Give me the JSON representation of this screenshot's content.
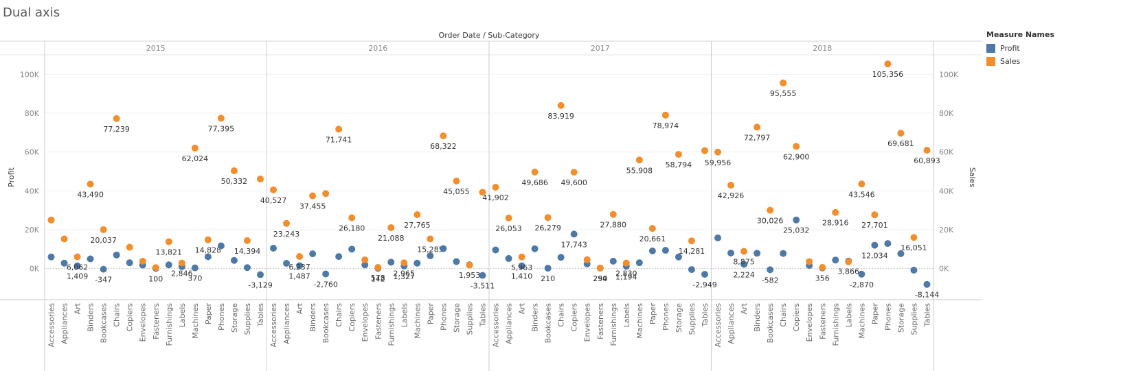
{
  "sheet_title": "Dual axis",
  "legend": {
    "title": "Measure Names",
    "items": [
      {
        "label": "Profit",
        "color": "#4e79a7"
      },
      {
        "label": "Sales",
        "color": "#f28e2b"
      }
    ]
  },
  "chart_data": {
    "type": "scatter",
    "header_label": "Order Date / Sub-Category",
    "ylabel_left": "Profit",
    "ylabel_right": "Sales",
    "ylim": [
      -16000,
      110000
    ],
    "yticks": [
      {
        "value": 0,
        "label": "0K"
      },
      {
        "value": 20000,
        "label": "20K"
      },
      {
        "value": 40000,
        "label": "40K"
      },
      {
        "value": 60000,
        "label": "60K"
      },
      {
        "value": 80000,
        "label": "80K"
      },
      {
        "value": 100000,
        "label": "100K"
      }
    ],
    "categories": [
      "Accessories",
      "Appliances",
      "Art",
      "Binders",
      "Bookcases",
      "Chairs",
      "Copiers",
      "Envelopes",
      "Fasteners",
      "Furnishings",
      "Labels",
      "Machines",
      "Paper",
      "Phones",
      "Storage",
      "Supplies",
      "Tables"
    ],
    "panels": [
      {
        "year": "2015",
        "profit": [
          6000,
          2800,
          1409,
          5000,
          -347,
          7000,
          3000,
          1800,
          100,
          1900,
          1000,
          370,
          6100,
          11700,
          4200,
          500,
          -3129
        ],
        "sales": [
          25000,
          15300,
          6062,
          43490,
          20037,
          77239,
          11000,
          3800,
          500,
          13821,
          2846,
          62024,
          14828,
          77395,
          50332,
          14394,
          46100
        ],
        "profit_labels": [
          "",
          "",
          "1,409",
          "",
          "-347",
          "",
          "",
          "",
          "100",
          "",
          "",
          "370",
          "",
          "",
          "",
          "",
          "-3,129"
        ],
        "sales_labels": [
          "",
          "",
          "6,062",
          "43,490",
          "20,037",
          "77,239",
          "",
          "",
          "",
          "13,821",
          "2,846",
          "62,024",
          "14,828",
          "77,395",
          "50,332",
          "14,394",
          ""
        ]
      },
      {
        "year": "2016",
        "profit": [
          10500,
          2700,
          1487,
          7600,
          -2760,
          6200,
          10000,
          1900,
          142,
          3300,
          1327,
          2800,
          6600,
          10300,
          3600,
          1953,
          -3511
        ],
        "sales": [
          40527,
          23243,
          6237,
          37455,
          38600,
          71741,
          26180,
          4500,
          578,
          21088,
          2965,
          27765,
          15285,
          68322,
          45055,
          1800,
          39300
        ],
        "profit_labels": [
          "",
          "",
          "1,487",
          "",
          "-2,760",
          "",
          "",
          "",
          "142",
          "",
          "1,327",
          "",
          "",
          "",
          "",
          "1,953",
          "-3,511"
        ],
        "sales_labels": [
          "40,527",
          "23,243",
          "6,237",
          "37,455",
          "",
          "71,741",
          "26,180",
          "",
          "578",
          "21,088",
          "2,965",
          "27,765",
          "15,285",
          "68,322",
          "45,055",
          "",
          ""
        ]
      },
      {
        "year": "2017",
        "profit": [
          9600,
          5200,
          1410,
          10200,
          210,
          5800,
          17743,
          2400,
          254,
          3800,
          1194,
          3000,
          9100,
          9400,
          6000,
          -500,
          -2949
        ],
        "sales": [
          41902,
          26053,
          5963,
          49686,
          26279,
          83919,
          49600,
          4600,
          290,
          27880,
          2830,
          55908,
          20661,
          78974,
          58794,
          14281,
          60700
        ],
        "profit_labels": [
          "",
          "",
          "1,410",
          "",
          "210",
          "",
          "17,743",
          "",
          "254",
          "",
          "1,194",
          "",
          "",
          "",
          "",
          "",
          "-2,949"
        ],
        "sales_labels": [
          "41,902",
          "26,053",
          "5,963",
          "49,686",
          "26,279",
          "83,919",
          "49,600",
          "",
          "290",
          "27,880",
          "2,830",
          "55,908",
          "20,661",
          "78,974",
          "58,794",
          "14,281",
          ""
        ]
      },
      {
        "year": "2018",
        "profit": [
          15800,
          8000,
          2224,
          7900,
          -582,
          7800,
          25032,
          1600,
          356,
          4400,
          3866,
          -2870,
          12034,
          12900,
          7700,
          -800,
          -8144
        ],
        "sales": [
          59956,
          42926,
          8875,
          72797,
          30026,
          95555,
          62900,
          3600,
          600,
          28916,
          3500,
          43546,
          27701,
          105356,
          69681,
          16051,
          60893
        ],
        "profit_labels": [
          "",
          "",
          "2,224",
          "",
          "-582",
          "",
          "25,032",
          "",
          "356",
          "",
          "3,866",
          "-2,870",
          "12,034",
          "",
          "",
          "",
          "-8,144"
        ],
        "sales_labels": [
          "59,956",
          "42,926",
          "8,875",
          "72,797",
          "30,026",
          "95,555",
          "62,900",
          "",
          "",
          "28,916",
          "",
          "43,546",
          "27,701",
          "105,356",
          "69,681",
          "16,051",
          "60,893"
        ]
      }
    ],
    "grid": true
  }
}
